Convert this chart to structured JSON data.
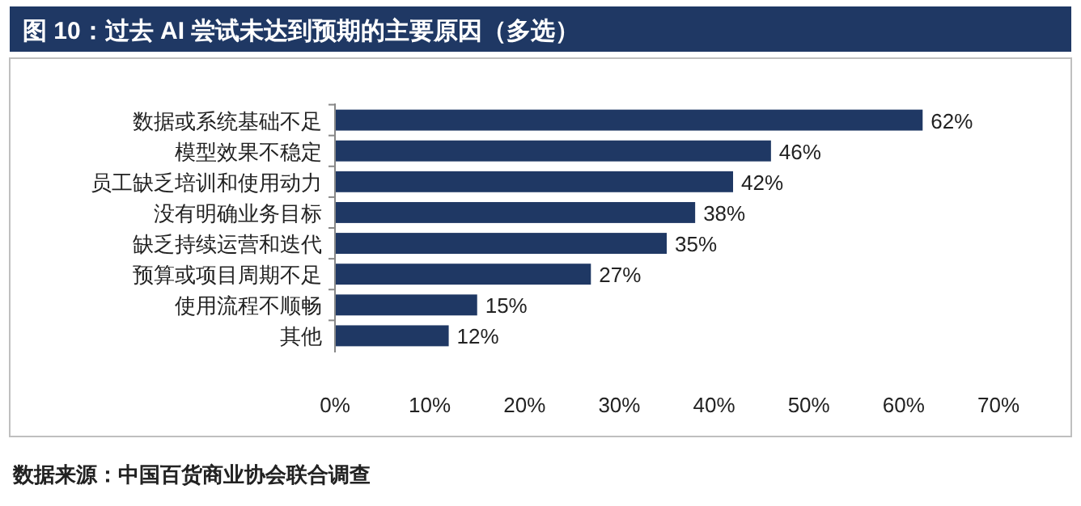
{
  "chart_data": {
    "type": "bar",
    "orientation": "horizontal",
    "title": "图 10：过去 AI 尝试未达到预期的主要原因（多选）",
    "categories": [
      "数据或系统基础不足",
      "模型效果不稳定",
      "员工缺乏培训和使用动力",
      "没有明确业务目标",
      "缺乏持续运营和迭代",
      "预算或项目周期不足",
      "使用流程不顺畅",
      "其他"
    ],
    "values": [
      62,
      46,
      42,
      38,
      35,
      27,
      15,
      12
    ],
    "value_labels": [
      "62%",
      "46%",
      "42%",
      "38%",
      "35%",
      "27%",
      "15%",
      "12%"
    ],
    "color": "#1f3864",
    "xlim": [
      0,
      70
    ],
    "xticks": [
      {
        "value": 0,
        "label": "0%"
      },
      {
        "value": 10,
        "label": "10%"
      },
      {
        "value": 20,
        "label": "20%"
      },
      {
        "value": 30,
        "label": "30%"
      },
      {
        "value": 40,
        "label": "40%"
      },
      {
        "value": 50,
        "label": "50%"
      },
      {
        "value": 60,
        "label": "60%"
      },
      {
        "value": 70,
        "label": "70%"
      }
    ],
    "annotations": [
      "数据来源：中国百货商业协会联合调查"
    ]
  }
}
